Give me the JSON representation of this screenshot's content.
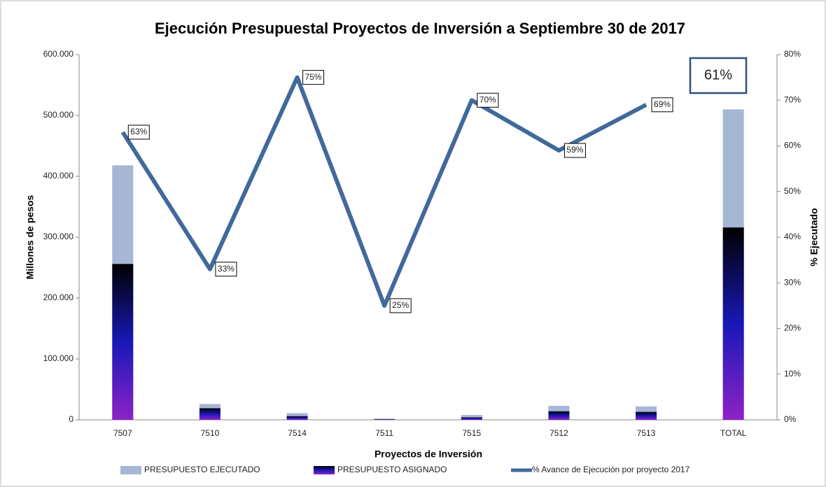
{
  "chart_data": {
    "type": "bar_line",
    "title": "Ejecución Presupuestal Proyectos de Inversión a Septiembre 30 de 2017",
    "x_label": "Proyectos de Inversión",
    "y_label": "Millones de pesos",
    "y2_label": "% Ejecutado",
    "annotation": "61%",
    "categories": [
      "7507",
      "7510",
      "7514",
      "7511",
      "7515",
      "7512",
      "7513",
      "TOTAL"
    ],
    "series": [
      {
        "name": "PRESUPUESTO EJECUTADO",
        "type": "bar",
        "color": "#a6b6d5",
        "values": [
          418000,
          26000,
          11000,
          2000,
          8000,
          23000,
          22000,
          510000
        ]
      },
      {
        "name": "PRESUPUESTO ASIGNADO",
        "type": "bar",
        "color": [
          "#000000",
          "#1818b8",
          "#8e22c6"
        ],
        "values": [
          256000,
          19000,
          6000,
          1000,
          4000,
          14000,
          13000,
          316000
        ]
      },
      {
        "name": "% Avance de Ejecución por proyecto 2017",
        "type": "line",
        "axis": "y2",
        "color": "#41699b",
        "values": [
          63,
          33,
          75,
          25,
          70,
          59,
          69,
          null
        ],
        "value_labels": [
          "63%",
          "33%",
          "75%",
          "25%",
          "70%",
          "59%",
          "69%",
          null
        ]
      }
    ],
    "ylim": [
      0,
      600000
    ],
    "yticks": [
      0,
      {
        "value": 100000,
        "label": "100.000"
      },
      {
        "value": 200000,
        "label": "200.000"
      },
      {
        "value": 300000,
        "label": "300.000"
      },
      {
        "value": 400000,
        "label": "400.000"
      },
      {
        "value": 500000,
        "label": "500.000"
      },
      {
        "value": 600000,
        "label": "600.000"
      }
    ],
    "y2lim": [
      0,
      80
    ],
    "y2ticks": [
      {
        "value": 0,
        "label": "0%"
      },
      {
        "value": 10,
        "label": "10%"
      },
      {
        "value": 20,
        "label": "20%"
      },
      {
        "value": 30,
        "label": "30%"
      },
      {
        "value": 40,
        "label": "40%"
      },
      {
        "value": 50,
        "label": "50%"
      },
      {
        "value": 60,
        "label": "60%"
      },
      {
        "value": 70,
        "label": "70%"
      },
      {
        "value": 80,
        "label": "80%"
      }
    ],
    "grid": false,
    "legend": "bottom"
  }
}
